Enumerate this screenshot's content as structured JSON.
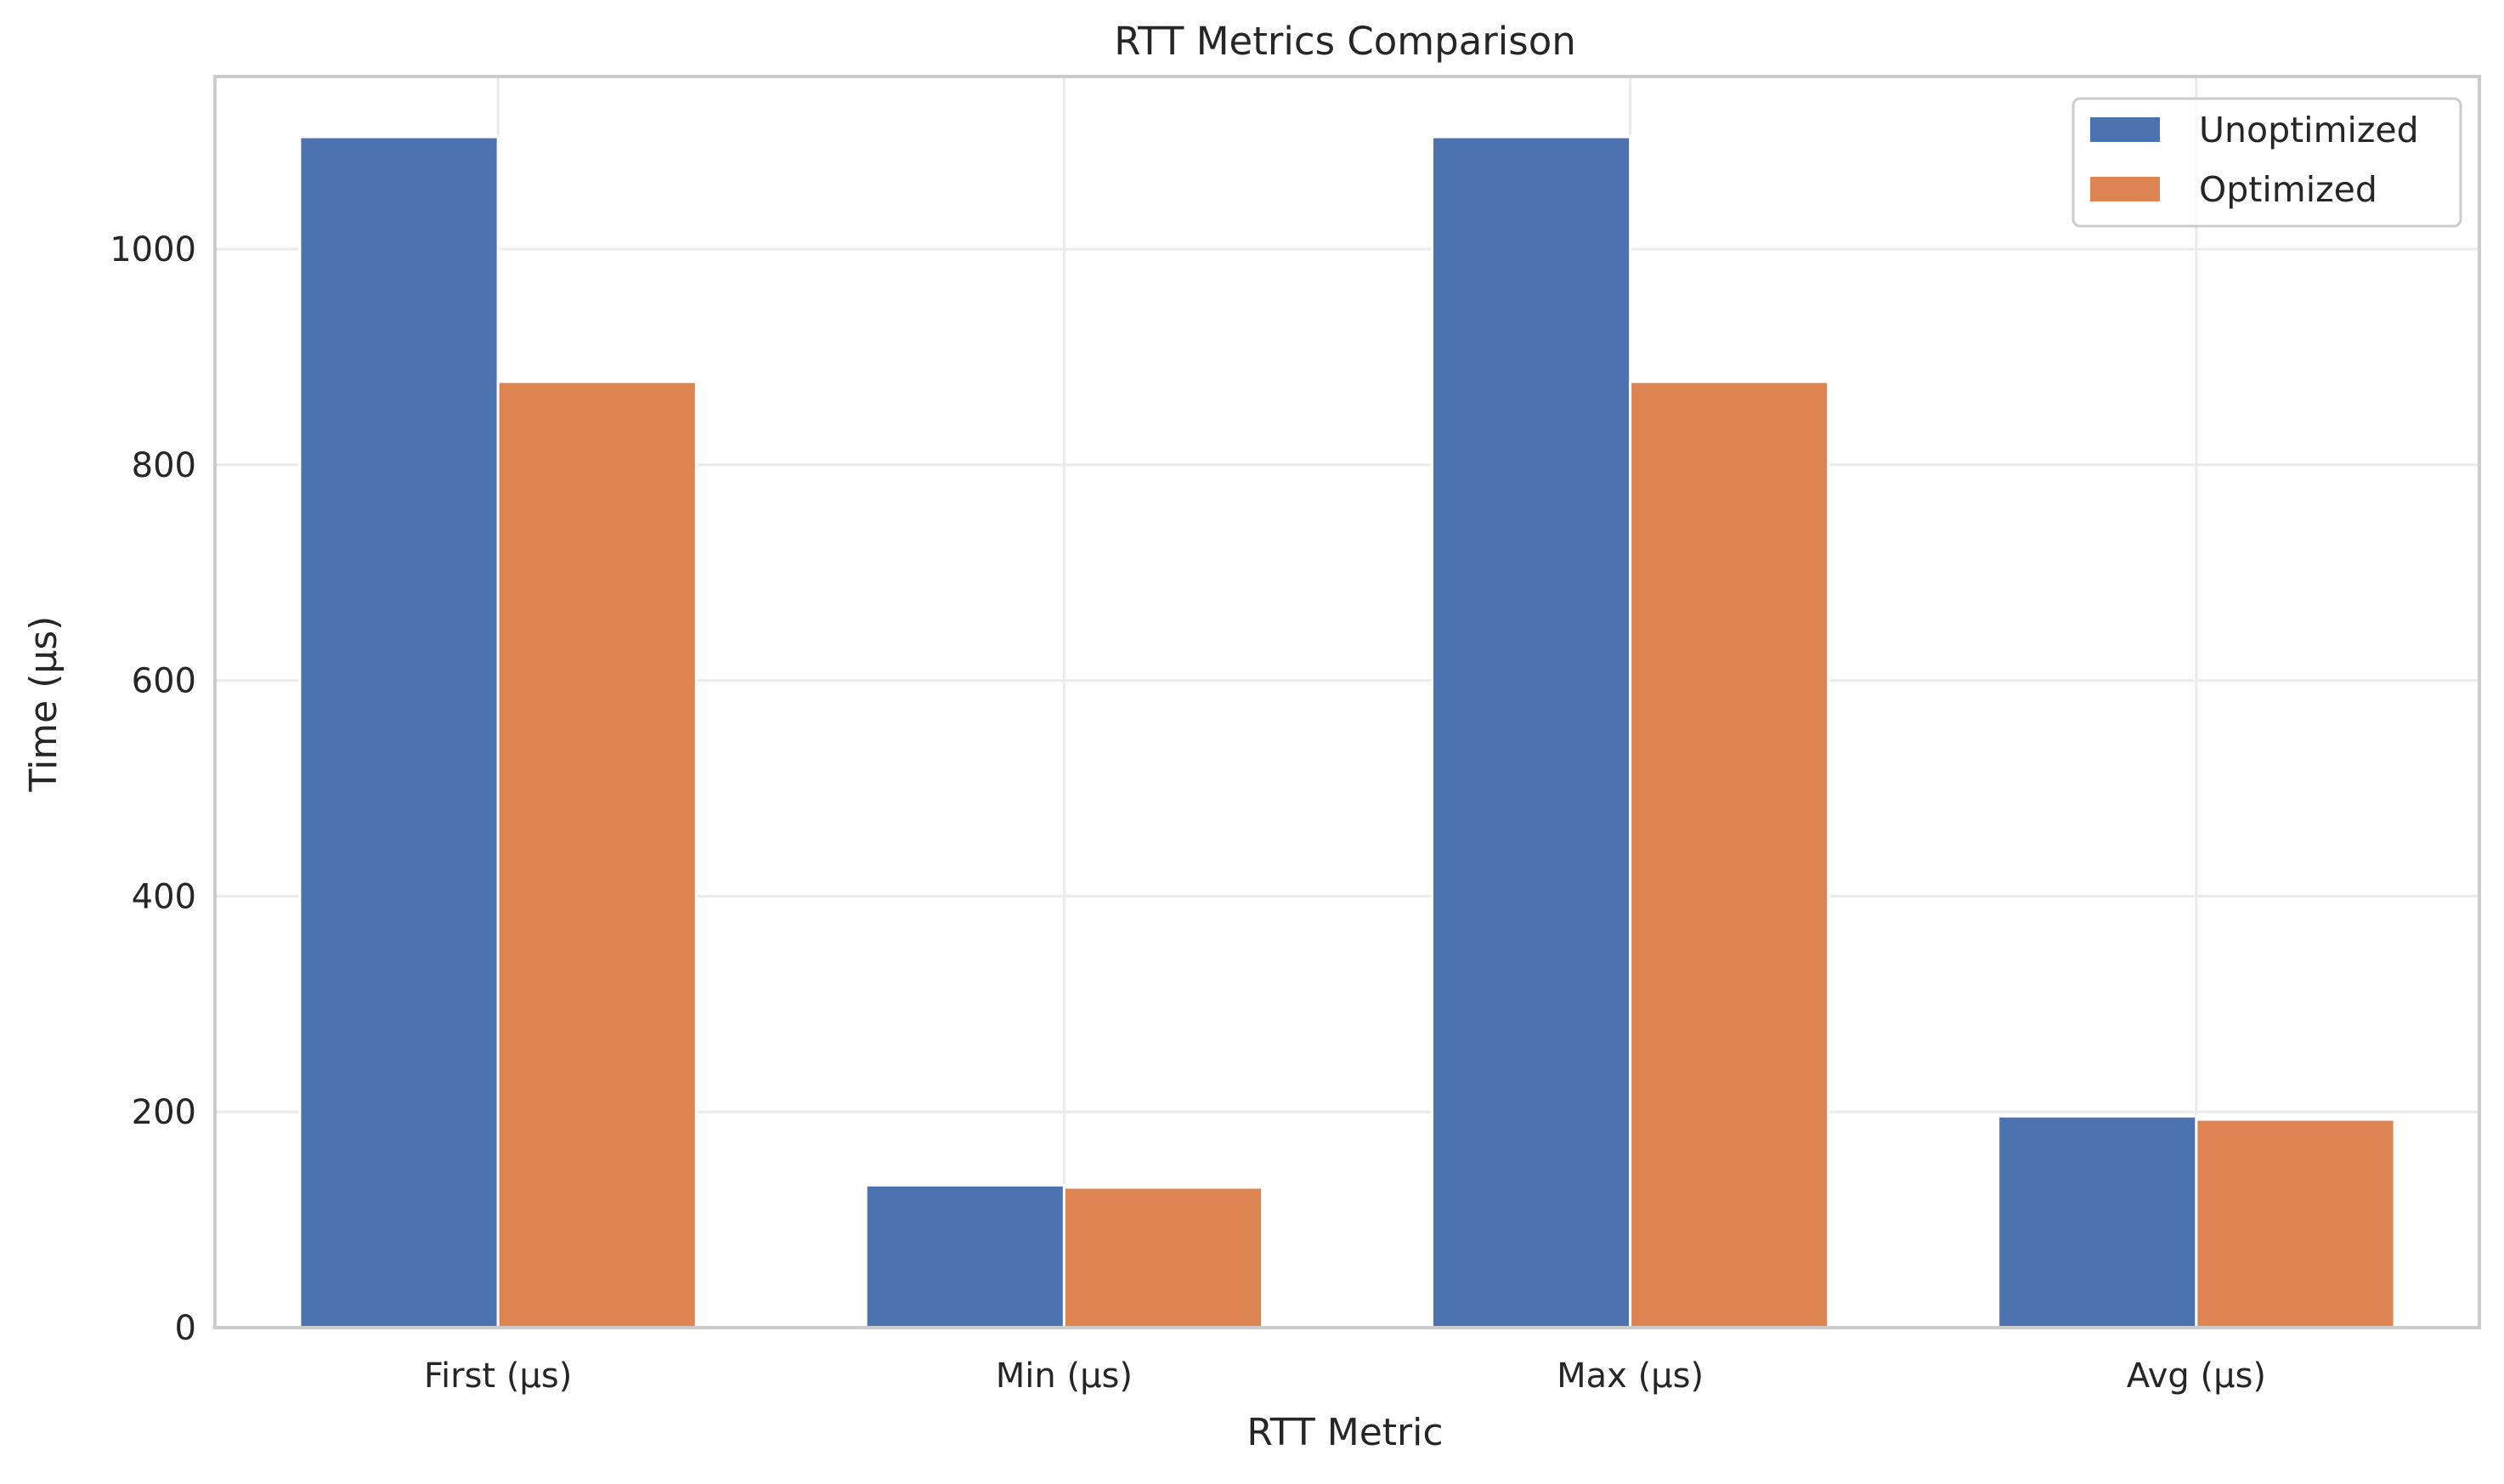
{
  "chart_data": {
    "type": "bar",
    "title": "RTT Metrics Comparison",
    "xlabel": "RTT Metric",
    "ylabel": "Time (µs)",
    "categories": [
      "First (µs)",
      "Min (µs)",
      "Max (µs)",
      "Avg (µs)"
    ],
    "series": [
      {
        "name": "Unoptimized",
        "color": "#4c72b0",
        "values": [
          1104,
          132,
          1104,
          196
        ]
      },
      {
        "name": "Optimized",
        "color": "#dd8452",
        "values": [
          877,
          130,
          877,
          193
        ]
      }
    ],
    "ylim": [
      0,
      1160
    ],
    "yticks": [
      0,
      200,
      400,
      600,
      800,
      1000
    ],
    "ytick_labels": [
      "0",
      "200",
      "400",
      "600",
      "800",
      "1000"
    ],
    "grid": true,
    "legend_position": "top-right"
  }
}
